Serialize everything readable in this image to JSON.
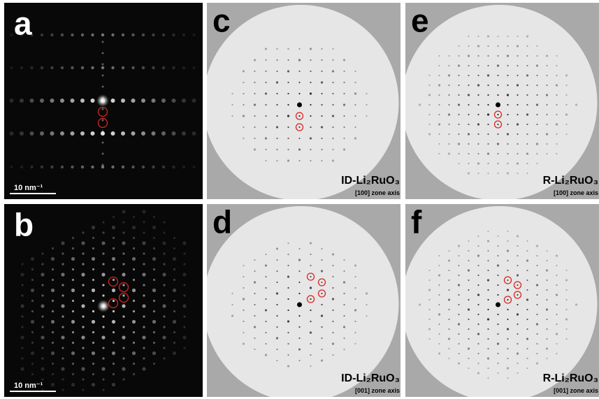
{
  "panels": [
    {
      "label": "a",
      "scale_bar": "10 nm⁻¹"
    },
    {
      "label": "b",
      "scale_bar": "10 nm⁻¹"
    },
    {
      "label": "c",
      "phase": "ID-Li₂RuO₃",
      "zone_axis": "[100] zone axis"
    },
    {
      "label": "d",
      "phase": "ID-Li₂RuO₃",
      "zone_axis": "[001] zone axis"
    },
    {
      "label": "e",
      "phase": "R-Li₂RuO₃",
      "zone_axis": "[100] zone axis"
    },
    {
      "label": "f",
      "phase": "R-Li₂RuO₃",
      "zone_axis": "[001] zone axis"
    }
  ]
}
